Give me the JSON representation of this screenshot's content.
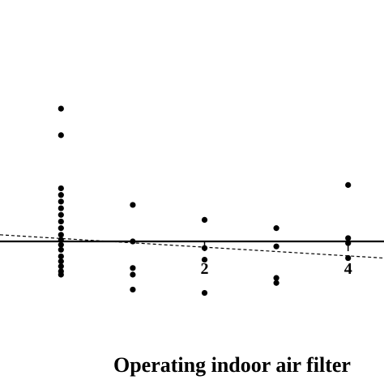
{
  "chart_data": {
    "type": "scatter",
    "xlabel": "Operating indoor air filter",
    "ylabel": "",
    "xlim": [
      -0.85,
      4.5
    ],
    "ylim": [
      -2.0,
      4.1
    ],
    "x_ticks": [
      2,
      4
    ],
    "points": [
      {
        "x": 0,
        "y": 4.0
      },
      {
        "x": 0,
        "y": 3.2
      },
      {
        "x": 0,
        "y": 1.6
      },
      {
        "x": 0,
        "y": 1.4
      },
      {
        "x": 0,
        "y": 1.2
      },
      {
        "x": 0,
        "y": 1.0
      },
      {
        "x": 0,
        "y": 0.8
      },
      {
        "x": 0,
        "y": 0.6
      },
      {
        "x": 0,
        "y": 0.4
      },
      {
        "x": 0,
        "y": 0.2
      },
      {
        "x": 0,
        "y": 0.05
      },
      {
        "x": 0,
        "y": -0.1
      },
      {
        "x": 0,
        "y": -0.25
      },
      {
        "x": 0,
        "y": -0.45
      },
      {
        "x": 0,
        "y": -0.6
      },
      {
        "x": 0,
        "y": -0.75
      },
      {
        "x": 0,
        "y": -0.9
      },
      {
        "x": 0,
        "y": -1.0
      },
      {
        "x": 1,
        "y": 1.1
      },
      {
        "x": 1,
        "y": 0.0
      },
      {
        "x": 1,
        "y": -0.8
      },
      {
        "x": 1,
        "y": -1.0
      },
      {
        "x": 1,
        "y": -1.45
      },
      {
        "x": 2,
        "y": 0.65
      },
      {
        "x": 2,
        "y": -0.2
      },
      {
        "x": 2,
        "y": -0.55
      },
      {
        "x": 2,
        "y": -1.55
      },
      {
        "x": 3,
        "y": 0.4
      },
      {
        "x": 3,
        "y": -0.15
      },
      {
        "x": 3,
        "y": -1.1
      },
      {
        "x": 3,
        "y": -1.25
      },
      {
        "x": 4,
        "y": 1.7
      },
      {
        "x": 4,
        "y": 0.1
      },
      {
        "x": 4,
        "y": -0.05
      },
      {
        "x": 4,
        "y": -0.5
      }
    ],
    "reference_line": {
      "y": 0,
      "style": "solid"
    },
    "trend_line": {
      "style": "dashed",
      "x": [
        -0.85,
        4.5
      ],
      "y": [
        0.2,
        -0.5
      ]
    },
    "grid": false,
    "legend": "none"
  }
}
